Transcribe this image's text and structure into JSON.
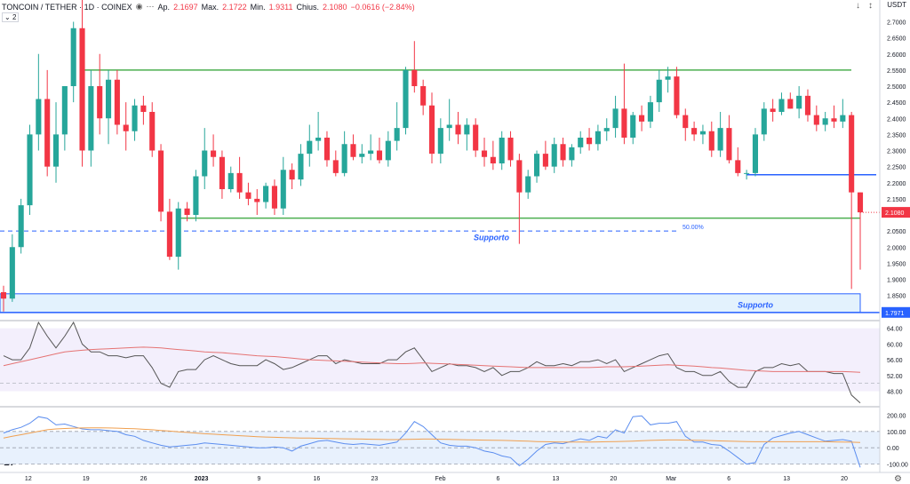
{
  "header": {
    "symbol": "TONCOIN / TETHER · 1D · COINEX",
    "open_label": "Ap.",
    "open_value": "2.1697",
    "high_label": "Max.",
    "high_value": "2.1722",
    "low_label": "Min.",
    "low_value": "1.9311",
    "close_label": "Chius.",
    "close_value": "2.1080",
    "change": "−0.0616 (−2.84%)",
    "indicator_count": "2",
    "currency": "USDT"
  },
  "colors": {
    "up": "#26a69a",
    "down": "#f23645",
    "green_line": "#4caf50",
    "blue_line": "#2962ff",
    "zone_fill": "#e3f2fd",
    "rsi_line": "#555555",
    "rsi_ma": "#e57373",
    "cci_line": "#5b8def",
    "cci_ma": "#f0a050"
  },
  "chart_data": [
    {
      "type": "candlestick",
      "title": "TONCOIN / TETHER · 1D · COINEX",
      "y_ticks": [
        "2.7000",
        "2.6500",
        "2.6000",
        "2.5500",
        "2.5000",
        "2.4500",
        "2.4000",
        "2.3500",
        "2.3000",
        "2.2500",
        "2.2000",
        "2.1500",
        "2.1000",
        "2.0500",
        "2.0000",
        "1.9500",
        "1.9000",
        "1.8500"
      ],
      "ylim": [
        1.78,
        2.74
      ],
      "x_ticks": [
        "12",
        "19",
        "26",
        "2023",
        "9",
        "16",
        "23",
        "Feb",
        "6",
        "13",
        "20",
        "Mar",
        "6",
        "13",
        "20"
      ],
      "current_price": "2.1080",
      "marked_price": "1.7971",
      "annotations": [
        {
          "text": "Supporto",
          "price": 2.03
        },
        {
          "text": "Supporto",
          "price": 1.82
        },
        {
          "text": "50.00%",
          "price": 2.05
        }
      ],
      "levels": {
        "resistance": 2.55,
        "support": 2.09,
        "fib_50": 2.05,
        "blue_level": 2.225,
        "zone_top": 1.855,
        "zone_bottom": 1.797
      },
      "candles": [
        [
          1.86,
          1.88,
          1.8,
          1.84
        ],
        [
          1.84,
          2.04,
          1.83,
          2.0
        ],
        [
          2.0,
          2.15,
          1.98,
          2.13
        ],
        [
          2.13,
          2.38,
          2.1,
          2.35
        ],
        [
          2.35,
          2.6,
          2.3,
          2.46
        ],
        [
          2.46,
          2.55,
          2.22,
          2.25
        ],
        [
          2.25,
          2.45,
          2.2,
          2.35
        ],
        [
          2.35,
          2.5,
          2.3,
          2.5
        ],
        [
          2.5,
          2.7,
          2.45,
          2.68
        ],
        [
          2.68,
          2.85,
          2.25,
          2.3
        ],
        [
          2.3,
          2.55,
          2.25,
          2.5
        ],
        [
          2.5,
          2.6,
          2.35,
          2.4
        ],
        [
          2.4,
          2.55,
          2.32,
          2.52
        ],
        [
          2.52,
          2.55,
          2.35,
          2.38
        ],
        [
          2.38,
          2.45,
          2.3,
          2.36
        ],
        [
          2.36,
          2.46,
          2.33,
          2.44
        ],
        [
          2.44,
          2.47,
          2.38,
          2.42
        ],
        [
          2.42,
          2.45,
          2.28,
          2.3
        ],
        [
          2.3,
          2.32,
          2.08,
          2.11
        ],
        [
          2.11,
          2.15,
          1.96,
          1.97
        ],
        [
          1.97,
          2.14,
          1.93,
          2.12
        ],
        [
          2.12,
          2.14,
          2.08,
          2.1
        ],
        [
          2.1,
          2.24,
          2.08,
          2.22
        ],
        [
          2.22,
          2.37,
          2.18,
          2.3
        ],
        [
          2.3,
          2.35,
          2.25,
          2.28
        ],
        [
          2.28,
          2.3,
          2.15,
          2.18
        ],
        [
          2.18,
          2.25,
          2.17,
          2.23
        ],
        [
          2.23,
          2.28,
          2.15,
          2.17
        ],
        [
          2.17,
          2.2,
          2.13,
          2.15
        ],
        [
          2.15,
          2.18,
          2.1,
          2.14
        ],
        [
          2.14,
          2.2,
          2.12,
          2.19
        ],
        [
          2.19,
          2.21,
          2.1,
          2.12
        ],
        [
          2.12,
          2.28,
          2.1,
          2.24
        ],
        [
          2.24,
          2.26,
          2.18,
          2.21
        ],
        [
          2.21,
          2.32,
          2.19,
          2.29
        ],
        [
          2.29,
          2.38,
          2.25,
          2.33
        ],
        [
          2.33,
          2.42,
          2.3,
          2.34
        ],
        [
          2.34,
          2.36,
          2.25,
          2.27
        ],
        [
          2.27,
          2.3,
          2.22,
          2.23
        ],
        [
          2.23,
          2.36,
          2.22,
          2.32
        ],
        [
          2.32,
          2.35,
          2.27,
          2.28
        ],
        [
          2.28,
          2.32,
          2.26,
          2.29
        ],
        [
          2.29,
          2.35,
          2.27,
          2.3
        ],
        [
          2.3,
          2.34,
          2.26,
          2.27
        ],
        [
          2.27,
          2.36,
          2.25,
          2.33
        ],
        [
          2.33,
          2.45,
          2.3,
          2.37
        ],
        [
          2.37,
          2.56,
          2.35,
          2.55
        ],
        [
          2.55,
          2.64,
          2.48,
          2.5
        ],
        [
          2.5,
          2.52,
          2.41,
          2.44
        ],
        [
          2.44,
          2.48,
          2.26,
          2.29
        ],
        [
          2.29,
          2.4,
          2.26,
          2.37
        ],
        [
          2.37,
          2.46,
          2.33,
          2.38
        ],
        [
          2.38,
          2.42,
          2.32,
          2.35
        ],
        [
          2.35,
          2.4,
          2.3,
          2.38
        ],
        [
          2.38,
          2.4,
          2.28,
          2.3
        ],
        [
          2.3,
          2.34,
          2.25,
          2.28
        ],
        [
          2.28,
          2.33,
          2.24,
          2.26
        ],
        [
          2.26,
          2.36,
          2.24,
          2.34
        ],
        [
          2.34,
          2.36,
          2.25,
          2.27
        ],
        [
          2.27,
          2.29,
          2.01,
          2.17
        ],
        [
          2.17,
          2.24,
          2.15,
          2.22
        ],
        [
          2.22,
          2.3,
          2.2,
          2.29
        ],
        [
          2.29,
          2.33,
          2.24,
          2.25
        ],
        [
          2.25,
          2.34,
          2.23,
          2.32
        ],
        [
          2.32,
          2.34,
          2.25,
          2.27
        ],
        [
          2.27,
          2.32,
          2.25,
          2.31
        ],
        [
          2.31,
          2.36,
          2.29,
          2.34
        ],
        [
          2.34,
          2.37,
          2.3,
          2.32
        ],
        [
          2.32,
          2.38,
          2.3,
          2.36
        ],
        [
          2.36,
          2.4,
          2.33,
          2.37
        ],
        [
          2.37,
          2.47,
          2.34,
          2.43
        ],
        [
          2.43,
          2.57,
          2.32,
          2.34
        ],
        [
          2.34,
          2.42,
          2.32,
          2.41
        ],
        [
          2.41,
          2.44,
          2.36,
          2.39
        ],
        [
          2.39,
          2.47,
          2.37,
          2.45
        ],
        [
          2.45,
          2.55,
          2.42,
          2.52
        ],
        [
          2.52,
          2.56,
          2.48,
          2.53
        ],
        [
          2.53,
          2.56,
          2.4,
          2.41
        ],
        [
          2.41,
          2.43,
          2.33,
          2.37
        ],
        [
          2.37,
          2.39,
          2.33,
          2.35
        ],
        [
          2.35,
          2.38,
          2.32,
          2.36
        ],
        [
          2.36,
          2.39,
          2.28,
          2.3
        ],
        [
          2.3,
          2.42,
          2.28,
          2.37
        ],
        [
          2.37,
          2.41,
          2.26,
          2.27
        ],
        [
          2.27,
          2.31,
          2.22,
          2.23
        ],
        [
          2.23,
          2.24,
          2.21,
          2.23
        ],
        [
          2.23,
          2.37,
          2.22,
          2.35
        ],
        [
          2.35,
          2.45,
          2.33,
          2.43
        ],
        [
          2.43,
          2.46,
          2.39,
          2.42
        ],
        [
          2.42,
          2.48,
          2.41,
          2.46
        ],
        [
          2.46,
          2.48,
          2.43,
          2.43
        ],
        [
          2.43,
          2.5,
          2.4,
          2.47
        ],
        [
          2.47,
          2.49,
          2.39,
          2.41
        ],
        [
          2.41,
          2.44,
          2.36,
          2.38
        ],
        [
          2.38,
          2.42,
          2.36,
          2.4
        ],
        [
          2.4,
          2.44,
          2.37,
          2.39
        ],
        [
          2.39,
          2.46,
          2.37,
          2.41
        ],
        [
          2.41,
          2.42,
          1.87,
          2.17
        ],
        [
          2.17,
          2.17,
          1.93,
          2.108
        ]
      ]
    },
    {
      "type": "line",
      "title": "RSI",
      "y_ticks": [
        "64.00",
        "60.00",
        "56.00",
        "52.00",
        "48.00"
      ],
      "ylim": [
        44.5,
        65.5
      ],
      "series": [
        {
          "values": [
            57,
            56,
            56,
            59,
            66,
            62,
            59,
            62,
            66,
            60,
            58,
            58,
            57,
            57,
            56.5,
            57,
            57,
            54,
            50,
            49,
            53,
            53.5,
            53.5,
            56,
            57,
            56,
            55,
            54.5,
            54.5,
            54.5,
            56,
            55,
            53.5,
            54,
            55,
            56,
            57,
            57,
            55,
            56,
            55.5,
            55,
            55,
            55,
            56,
            56,
            58,
            59,
            56,
            53,
            54,
            55,
            54.5,
            54.5,
            54,
            53,
            54,
            52,
            53,
            53,
            54,
            55.5,
            54.5,
            54.5,
            55,
            54.5,
            55.5,
            55.5,
            56,
            55,
            56,
            53,
            54,
            55,
            56,
            57,
            57.5,
            54,
            53,
            53,
            52,
            52,
            53,
            50.5,
            49,
            49,
            53,
            54,
            54,
            55,
            54.5,
            55,
            53,
            53,
            53,
            52.5,
            52.5,
            47,
            45
          ]
        },
        {
          "values": [
            54.5,
            55,
            55.5,
            56,
            56.5,
            57,
            57.5,
            58,
            58.2,
            58.4,
            58.6,
            58.7,
            58.8,
            58.9,
            59,
            59.1,
            59.2,
            59.1,
            59,
            58.8,
            58.6,
            58.4,
            58.2,
            58,
            57.9,
            57.8,
            57.6,
            57.4,
            57.2,
            57,
            56.9,
            56.8,
            56.6,
            56.4,
            56.2,
            56,
            55.9,
            55.8,
            55.7,
            55.6,
            55.5,
            55.4,
            55.3,
            55.2,
            55.1,
            55,
            55,
            55.1,
            55.2,
            55.1,
            55,
            54.9,
            54.8,
            54.7,
            54.6,
            54.5,
            54.4,
            54.3,
            54.2,
            54.1,
            54,
            54,
            54,
            54,
            54,
            54,
            54,
            54,
            54.1,
            54.2,
            54.2,
            54.2,
            54.3,
            54.4,
            54.5,
            54.6,
            54.7,
            54.6,
            54.5,
            54.4,
            54.2,
            54,
            53.9,
            53.7,
            53.5,
            53.3,
            53.2,
            53.1,
            53,
            53,
            53,
            53,
            53,
            53,
            53,
            53,
            53,
            52.9,
            52.8
          ]
        }
      ]
    },
    {
      "type": "line",
      "title": "CCI",
      "y_ticks": [
        "200.00",
        "100.00",
        "0.00",
        "-100.00"
      ],
      "ylim": [
        -140,
        240
      ],
      "series": [
        {
          "values": [
            90,
            110,
            125,
            150,
            190,
            180,
            140,
            145,
            130,
            115,
            110,
            110,
            105,
            100,
            80,
            70,
            45,
            30,
            15,
            5,
            10,
            15,
            20,
            30,
            25,
            20,
            15,
            10,
            5,
            0,
            0,
            5,
            0,
            -20,
            10,
            25,
            40,
            45,
            35,
            25,
            20,
            25,
            20,
            15,
            25,
            35,
            90,
            160,
            130,
            80,
            30,
            15,
            10,
            10,
            0,
            -20,
            -30,
            -50,
            -60,
            -110,
            -70,
            -20,
            20,
            30,
            25,
            40,
            55,
            45,
            70,
            60,
            110,
            90,
            190,
            195,
            140,
            150,
            150,
            160,
            70,
            35,
            35,
            20,
            15,
            -20,
            -60,
            -100,
            -90,
            20,
            60,
            75,
            90,
            100,
            80,
            60,
            40,
            45,
            50,
            40,
            -120
          ]
        },
        {
          "values": [
            60,
            70,
            80,
            90,
            100,
            110,
            115,
            118,
            120,
            121,
            122,
            122,
            121,
            120,
            118,
            116,
            113,
            110,
            106,
            102,
            98,
            94,
            90,
            86,
            83,
            80,
            77,
            74,
            71,
            68,
            66,
            64,
            62,
            61,
            60,
            59,
            58,
            57,
            56,
            55,
            54,
            53,
            52,
            51,
            50,
            50,
            51,
            52,
            53,
            53,
            52,
            51,
            50,
            49,
            48,
            47,
            46,
            45,
            44,
            42,
            40,
            38,
            37,
            36,
            35,
            35,
            35,
            35,
            36,
            37,
            38,
            39,
            41,
            43,
            45,
            47,
            48,
            48,
            47,
            46,
            45,
            44,
            42,
            40,
            39,
            38,
            37,
            37,
            37,
            37,
            37,
            37,
            37,
            37,
            37,
            36,
            35,
            34,
            32
          ]
        }
      ]
    }
  ]
}
